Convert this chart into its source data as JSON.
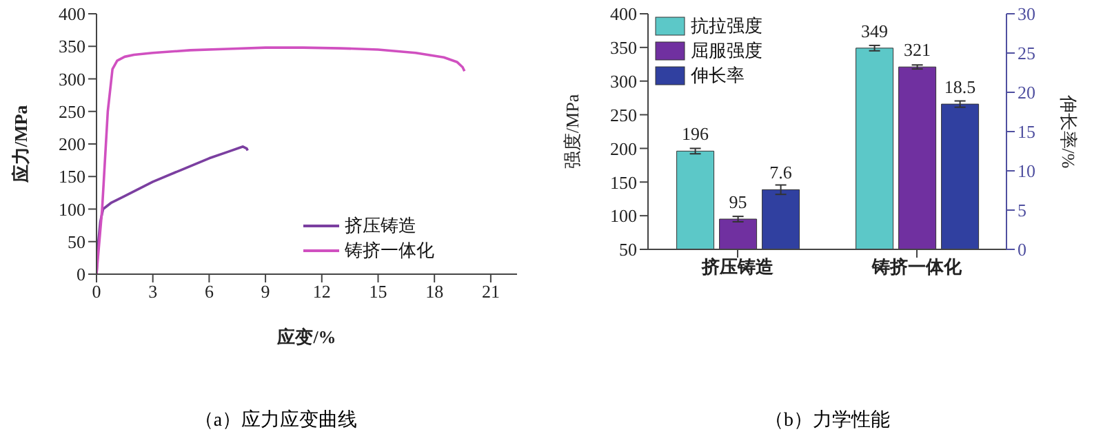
{
  "chart_data": [
    {
      "type": "line",
      "xlabel": "应变/%",
      "ylabel": "应力/MPa",
      "annotations": [
        "（a）应力应变曲线"
      ],
      "xlim": [
        0,
        22.4
      ],
      "xticks": [
        0,
        3,
        6,
        9,
        12,
        15,
        18,
        21
      ],
      "ylim": [
        0,
        400
      ],
      "yticks": [
        0,
        50,
        100,
        150,
        200,
        250,
        300,
        350,
        400
      ],
      "legend": "bottom right",
      "grid": false,
      "marker": "none",
      "line_style": "solid",
      "series": [
        {
          "name": "挤压铸造",
          "color": "#7b3fa0",
          "x": [
            0,
            0.1,
            0.2,
            0.35,
            0.8,
            1.5,
            3,
            4.5,
            6,
            7,
            7.8,
            8,
            8.05
          ],
          "values": [
            0,
            50,
            80,
            100,
            110,
            120,
            142,
            160,
            178,
            188,
            196,
            193,
            190
          ]
        },
        {
          "name": "铸挤一体化",
          "color": "#d050c0",
          "x": [
            0,
            0.3,
            0.6,
            0.85,
            1.1,
            1.5,
            2,
            3,
            5,
            7,
            9,
            11,
            13,
            15,
            17,
            18.5,
            19.2,
            19.5,
            19.6
          ],
          "values": [
            0,
            100,
            250,
            315,
            328,
            334,
            337,
            340,
            344,
            346,
            348,
            348,
            347,
            345,
            340,
            333,
            326,
            318,
            312
          ]
        }
      ]
    },
    {
      "type": "bar",
      "ylabel": "强度/MPa",
      "y2label": "伸长率/%",
      "annotations": [
        "（b）力学性能"
      ],
      "categories": [
        "挤压铸造",
        "铸挤一体化"
      ],
      "ylim": [
        50,
        400
      ],
      "yticks": [
        50,
        100,
        150,
        200,
        250,
        300,
        350,
        400
      ],
      "y2lim": [
        0,
        30
      ],
      "y2ticks": [
        0,
        5,
        10,
        15,
        20,
        25,
        30
      ],
      "legend": "top left",
      "grid": false,
      "data_labels": true,
      "series": [
        {
          "name": "抗拉强度",
          "color": "#5cc8c8",
          "values": [
            196,
            349
          ],
          "errors": [
            4,
            4
          ]
        },
        {
          "name": "屈服强度",
          "color": "#7030a0",
          "values": [
            95,
            321
          ],
          "errors": [
            4,
            3
          ]
        },
        {
          "name": "伸长率",
          "color": "#3040a0",
          "axis": "y2",
          "values": [
            7.6,
            18.5
          ],
          "errors": [
            0.6,
            0.4
          ]
        }
      ]
    }
  ]
}
